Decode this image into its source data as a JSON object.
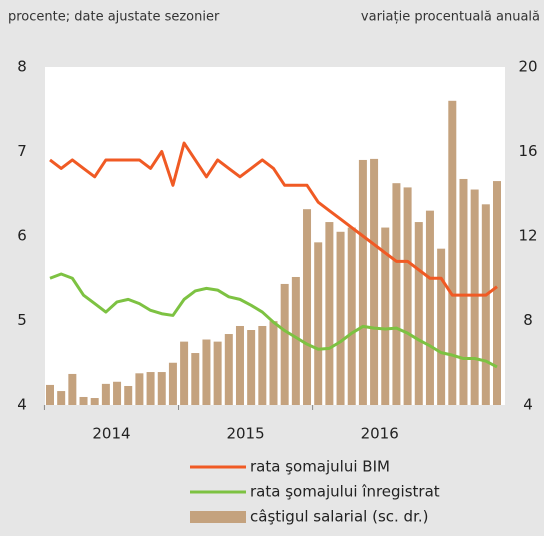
{
  "chart_data": {
    "type": "combo",
    "subtitle": "procente; date ajustate sezonier",
    "y2_label": "variație procentuală anuală",
    "categories": [
      "2014",
      null,
      null,
      null,
      null,
      null,
      null,
      null,
      null,
      null,
      null,
      null,
      "2015",
      null,
      null,
      null,
      null,
      null,
      null,
      null,
      null,
      null,
      null,
      null,
      "2016",
      null,
      null,
      null,
      null,
      null,
      null,
      null,
      null,
      null,
      null,
      null,
      null,
      null,
      null,
      null,
      null
    ],
    "ylim": [
      4,
      8
    ],
    "yticks": [
      4,
      5,
      6,
      7,
      8
    ],
    "y2lim": [
      4,
      20
    ],
    "y2ticks": [
      4,
      8,
      12,
      16,
      20
    ],
    "series": [
      {
        "name": "rata şomajului BIM",
        "type": "line",
        "color": "#f05a24",
        "values": [
          6.9,
          6.8,
          6.9,
          6.8,
          6.7,
          6.9,
          6.9,
          6.9,
          6.9,
          6.8,
          7.0,
          6.6,
          7.1,
          6.9,
          6.7,
          6.9,
          6.8,
          6.7,
          6.8,
          6.9,
          6.8,
          6.6,
          6.6,
          6.6,
          6.4,
          6.3,
          6.2,
          6.1,
          6.0,
          5.9,
          5.8,
          5.7,
          5.7,
          5.6,
          5.5,
          5.5,
          5.3,
          5.3,
          5.3,
          5.3,
          5.4
        ]
      },
      {
        "name": "rata şomajului înregistrat",
        "type": "line",
        "color": "#7dc242",
        "values": [
          5.5,
          5.55,
          5.5,
          5.3,
          5.2,
          5.1,
          5.22,
          5.25,
          5.2,
          5.12,
          5.08,
          5.06,
          5.25,
          5.35,
          5.38,
          5.36,
          5.28,
          5.25,
          5.18,
          5.1,
          4.98,
          4.88,
          4.8,
          4.72,
          4.66,
          4.67,
          4.75,
          4.85,
          4.93,
          4.91,
          4.9,
          4.91,
          4.85,
          4.77,
          4.7,
          4.62,
          4.59,
          4.55,
          4.55,
          4.52,
          4.45
        ]
      },
      {
        "name": "câştigul salarial (sc. dr.)",
        "type": "bar",
        "axis": "y2",
        "color": "#c4a27e",
        "values": [
          4.95,
          4.66,
          5.47,
          4.38,
          4.33,
          5.0,
          5.1,
          4.9,
          5.5,
          5.56,
          5.56,
          6.0,
          7.0,
          6.46,
          7.1,
          7.0,
          7.36,
          7.74,
          7.55,
          7.74,
          7.97,
          9.73,
          10.06,
          13.27,
          11.7,
          12.66,
          12.2,
          12.4,
          15.6,
          15.65,
          12.4,
          14.5,
          14.3,
          12.66,
          13.2,
          11.4,
          18.4,
          14.7,
          14.2,
          13.5,
          14.6
        ]
      }
    ]
  }
}
